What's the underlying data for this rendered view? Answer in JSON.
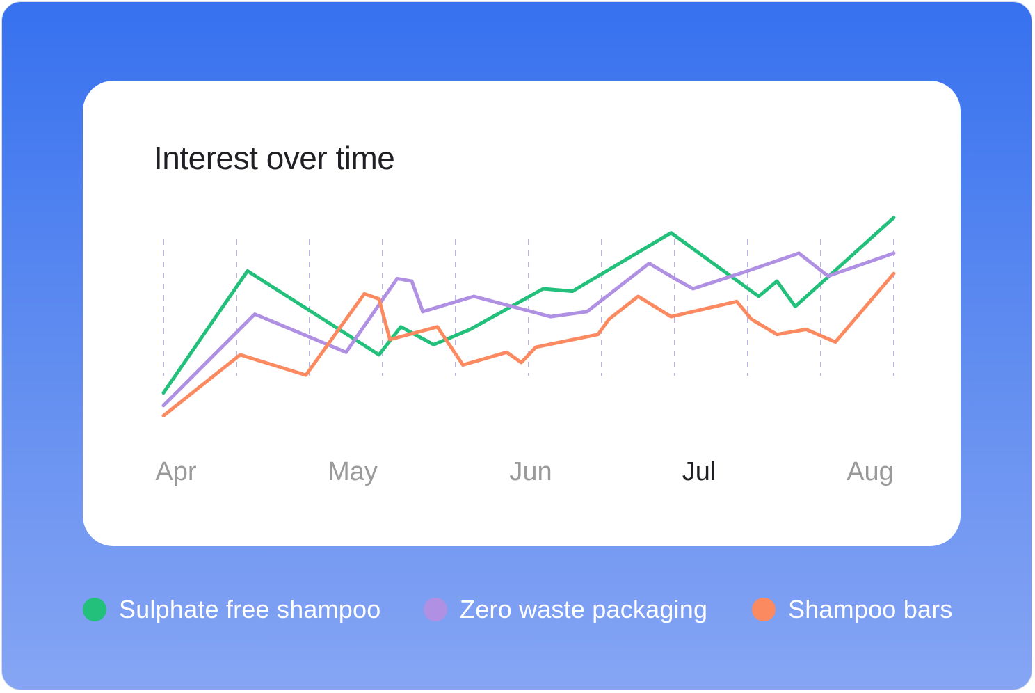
{
  "card": {
    "title": "Interest over time"
  },
  "chart_data": {
    "type": "line",
    "title": "Interest over time",
    "x_tick_labels": [
      "Apr",
      "May",
      "Jun",
      "Jul",
      "Aug"
    ],
    "highlighted_tick": "Jul",
    "x": [
      0,
      0.3,
      0.6,
      0.8,
      1.0,
      1.3,
      1.8,
      2.0,
      2.2,
      2.4,
      2.5,
      2.8,
      3.0,
      3.3,
      3.5,
      3.9,
      4.0,
      4.2,
      4.6,
      5.0,
      5.2,
      5.6,
      6.0,
      6.4,
      6.6,
      7.0,
      7.3,
      7.6,
      7.8,
      8.1,
      8.2,
      8.5,
      8.7,
      9.0,
      9.3,
      9.5,
      10.0
    ],
    "ylim": [
      0,
      100
    ],
    "grid": "vertical dashed",
    "legend_position": "bottom",
    "series": [
      {
        "name": "Sulphate free shampoo",
        "color": "#22c07a",
        "points": [
          [
            0,
            19
          ],
          [
            1.15,
            67
          ],
          [
            2.95,
            34
          ],
          [
            3.25,
            45
          ],
          [
            3.7,
            38
          ],
          [
            4.2,
            44
          ],
          [
            5.2,
            60
          ],
          [
            5.6,
            59
          ],
          [
            6.95,
            82
          ],
          [
            8.15,
            57
          ],
          [
            8.4,
            63
          ],
          [
            8.65,
            53
          ],
          [
            10.0,
            88
          ]
        ]
      },
      {
        "name": "Zero waste packaging",
        "color": "#b090e3",
        "points": [
          [
            0,
            14
          ],
          [
            1.25,
            50
          ],
          [
            2.5,
            35
          ],
          [
            3.2,
            64
          ],
          [
            3.4,
            63
          ],
          [
            3.55,
            51
          ],
          [
            4.25,
            57
          ],
          [
            5.3,
            49
          ],
          [
            5.8,
            51
          ],
          [
            6.65,
            70
          ],
          [
            7.0,
            64
          ],
          [
            7.25,
            60
          ],
          [
            8.0,
            67
          ],
          [
            8.7,
            74
          ],
          [
            9.1,
            65
          ],
          [
            10.0,
            74
          ]
        ]
      },
      {
        "name": "Shampoo bars",
        "color": "#fb8a61",
        "points": [
          [
            0,
            10
          ],
          [
            1.05,
            34
          ],
          [
            1.95,
            26
          ],
          [
            2.75,
            58
          ],
          [
            2.95,
            56
          ],
          [
            3.1,
            40
          ],
          [
            3.75,
            45
          ],
          [
            4.1,
            30
          ],
          [
            4.7,
            35
          ],
          [
            4.9,
            31
          ],
          [
            5.1,
            37
          ],
          [
            5.95,
            42
          ],
          [
            6.1,
            48
          ],
          [
            6.5,
            57
          ],
          [
            6.95,
            49
          ],
          [
            7.85,
            55
          ],
          [
            8.05,
            48
          ],
          [
            8.4,
            42
          ],
          [
            8.8,
            44
          ],
          [
            9.2,
            39
          ],
          [
            10.0,
            66
          ]
        ]
      }
    ]
  },
  "legend": [
    {
      "label": "Sulphate free shampoo",
      "color": "#22c07a"
    },
    {
      "label": "Zero waste packaging",
      "color": "#b090e3"
    },
    {
      "label": "Shampoo bars",
      "color": "#fb8a61"
    }
  ]
}
